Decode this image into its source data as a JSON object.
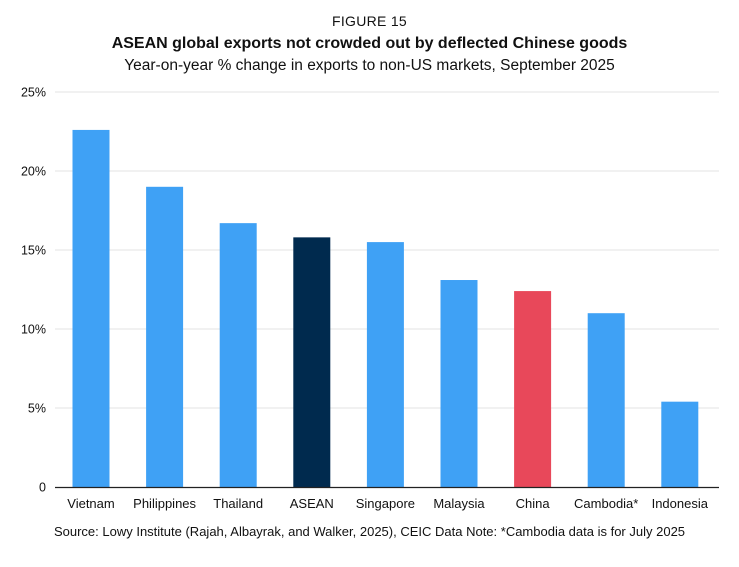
{
  "figure_label": "FIGURE 15",
  "chart_data": {
    "type": "bar",
    "title": "ASEAN global exports not crowded out by deflected Chinese goods",
    "subtitle": "Year-on-year % change in exports to non-US markets, September 2025",
    "xlabel": "",
    "ylabel": "",
    "ylim": [
      0,
      25
    ],
    "yticks": [
      0,
      5,
      10,
      15,
      20,
      25
    ],
    "ytick_labels": [
      "0",
      "5%",
      "10%",
      "15%",
      "20%",
      "25%"
    ],
    "grid": true,
    "categories": [
      "Vietnam",
      "Philippines",
      "Thailand",
      "ASEAN",
      "Singapore",
      "Malaysia",
      "China",
      "Cambodia*",
      "Indonesia"
    ],
    "values": [
      22.6,
      19.0,
      16.7,
      15.8,
      15.5,
      13.1,
      12.4,
      11.0,
      5.4
    ],
    "colors": [
      "#3fa1f5",
      "#3fa1f5",
      "#3fa1f5",
      "#002a4e",
      "#3fa1f5",
      "#3fa1f5",
      "#e8485a",
      "#3fa1f5",
      "#3fa1f5"
    ]
  },
  "source_note": "Source: Lowy Institute (Rajah, Albayrak, and Walker, 2025), CEIC Data   Note: *Cambodia data is for July 2025",
  "colors": {
    "gridline": "#e3e3e3",
    "axis": "#222222",
    "text": "#111111"
  }
}
